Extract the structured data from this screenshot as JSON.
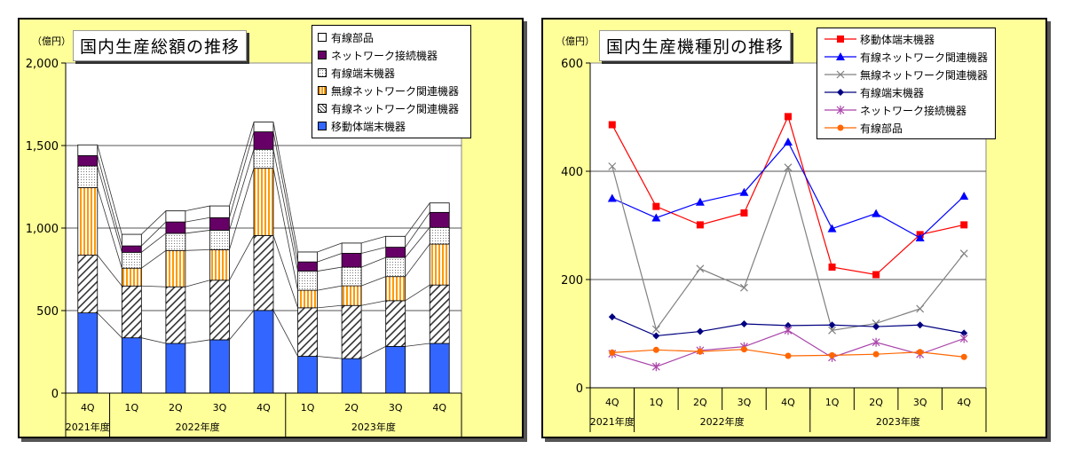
{
  "chart_data": [
    {
      "type": "bar",
      "stacked": true,
      "title": "国内生産総額の推移",
      "ylabel": "（億円）",
      "ylim": [
        0,
        2000
      ],
      "yticks": [
        "0",
        "500",
        "1,000",
        "1,500",
        "2,000"
      ],
      "categories": [
        "4Q",
        "1Q",
        "2Q",
        "3Q",
        "4Q",
        "1Q",
        "2Q",
        "3Q",
        "4Q"
      ],
      "groups": [
        {
          "label": "2021年度",
          "count": 1
        },
        {
          "label": "2022年度",
          "count": 4
        },
        {
          "label": "2023年度",
          "count": 4
        }
      ],
      "legend_position": "top-right",
      "grid": true,
      "series": [
        {
          "name": "移動体端末機器",
          "color": "#3366ff",
          "fill": "solid",
          "values": [
            486,
            335,
            301,
            323,
            501,
            223,
            209,
            283,
            301
          ]
        },
        {
          "name": "有線ネットワーク関連機器",
          "color": "#000000",
          "fill": "diagonal-hatch",
          "values": [
            350,
            314,
            343,
            361,
            454,
            294,
            322,
            277,
            354
          ]
        },
        {
          "name": "無線ネットワーク関連機器",
          "color": "#ff9900",
          "fill": "vertical-stripes",
          "values": [
            409,
            108,
            220,
            185,
            407,
            106,
            119,
            146,
            248
          ]
        },
        {
          "name": "有線端末機器",
          "color": "#999999",
          "fill": "dots",
          "values": [
            131,
            96,
            104,
            118,
            115,
            116,
            113,
            116,
            101
          ]
        },
        {
          "name": "ネットワーク接続機器",
          "color": "#660066",
          "fill": "solid",
          "values": [
            63,
            39,
            69,
            76,
            106,
            56,
            84,
            62,
            91
          ]
        },
        {
          "name": "有線部品",
          "color": "#ffffff",
          "fill": "solid",
          "values": [
            65,
            70,
            67,
            71,
            59,
            60,
            62,
            66,
            57
          ]
        }
      ]
    },
    {
      "type": "line",
      "title": "国内生産機種別の推移",
      "ylabel": "（億円）",
      "ylim": [
        0,
        600
      ],
      "yticks": [
        "0",
        "200",
        "400",
        "600"
      ],
      "categories": [
        "4Q",
        "1Q",
        "2Q",
        "3Q",
        "4Q",
        "1Q",
        "2Q",
        "3Q",
        "4Q"
      ],
      "groups": [
        {
          "label": "2021年度",
          "count": 1
        },
        {
          "label": "2022年度",
          "count": 4
        },
        {
          "label": "2023年度",
          "count": 4
        }
      ],
      "legend_position": "top-right",
      "grid": true,
      "series": [
        {
          "name": "移動体端末機器",
          "color": "#ff0000",
          "marker": "square",
          "values": [
            486,
            335,
            301,
            323,
            501,
            223,
            209,
            283,
            301
          ]
        },
        {
          "name": "有線ネットワーク関連機器",
          "color": "#0000ff",
          "marker": "triangle",
          "values": [
            350,
            314,
            343,
            361,
            454,
            294,
            322,
            277,
            354
          ]
        },
        {
          "name": "無線ネットワーク関連機器",
          "color": "#808080",
          "marker": "x",
          "values": [
            409,
            108,
            220,
            185,
            407,
            106,
            119,
            146,
            248
          ]
        },
        {
          "name": "有線端末機器",
          "color": "#000080",
          "marker": "diamond",
          "values": [
            131,
            96,
            104,
            118,
            115,
            116,
            113,
            116,
            101
          ]
        },
        {
          "name": "ネットワーク接続機器",
          "color": "#aa44aa",
          "marker": "asterisk",
          "values": [
            63,
            39,
            69,
            76,
            106,
            56,
            84,
            62,
            91
          ]
        },
        {
          "name": "有線部品",
          "color": "#ff6600",
          "marker": "circle",
          "values": [
            65,
            70,
            67,
            71,
            59,
            60,
            62,
            66,
            57
          ]
        }
      ]
    }
  ]
}
